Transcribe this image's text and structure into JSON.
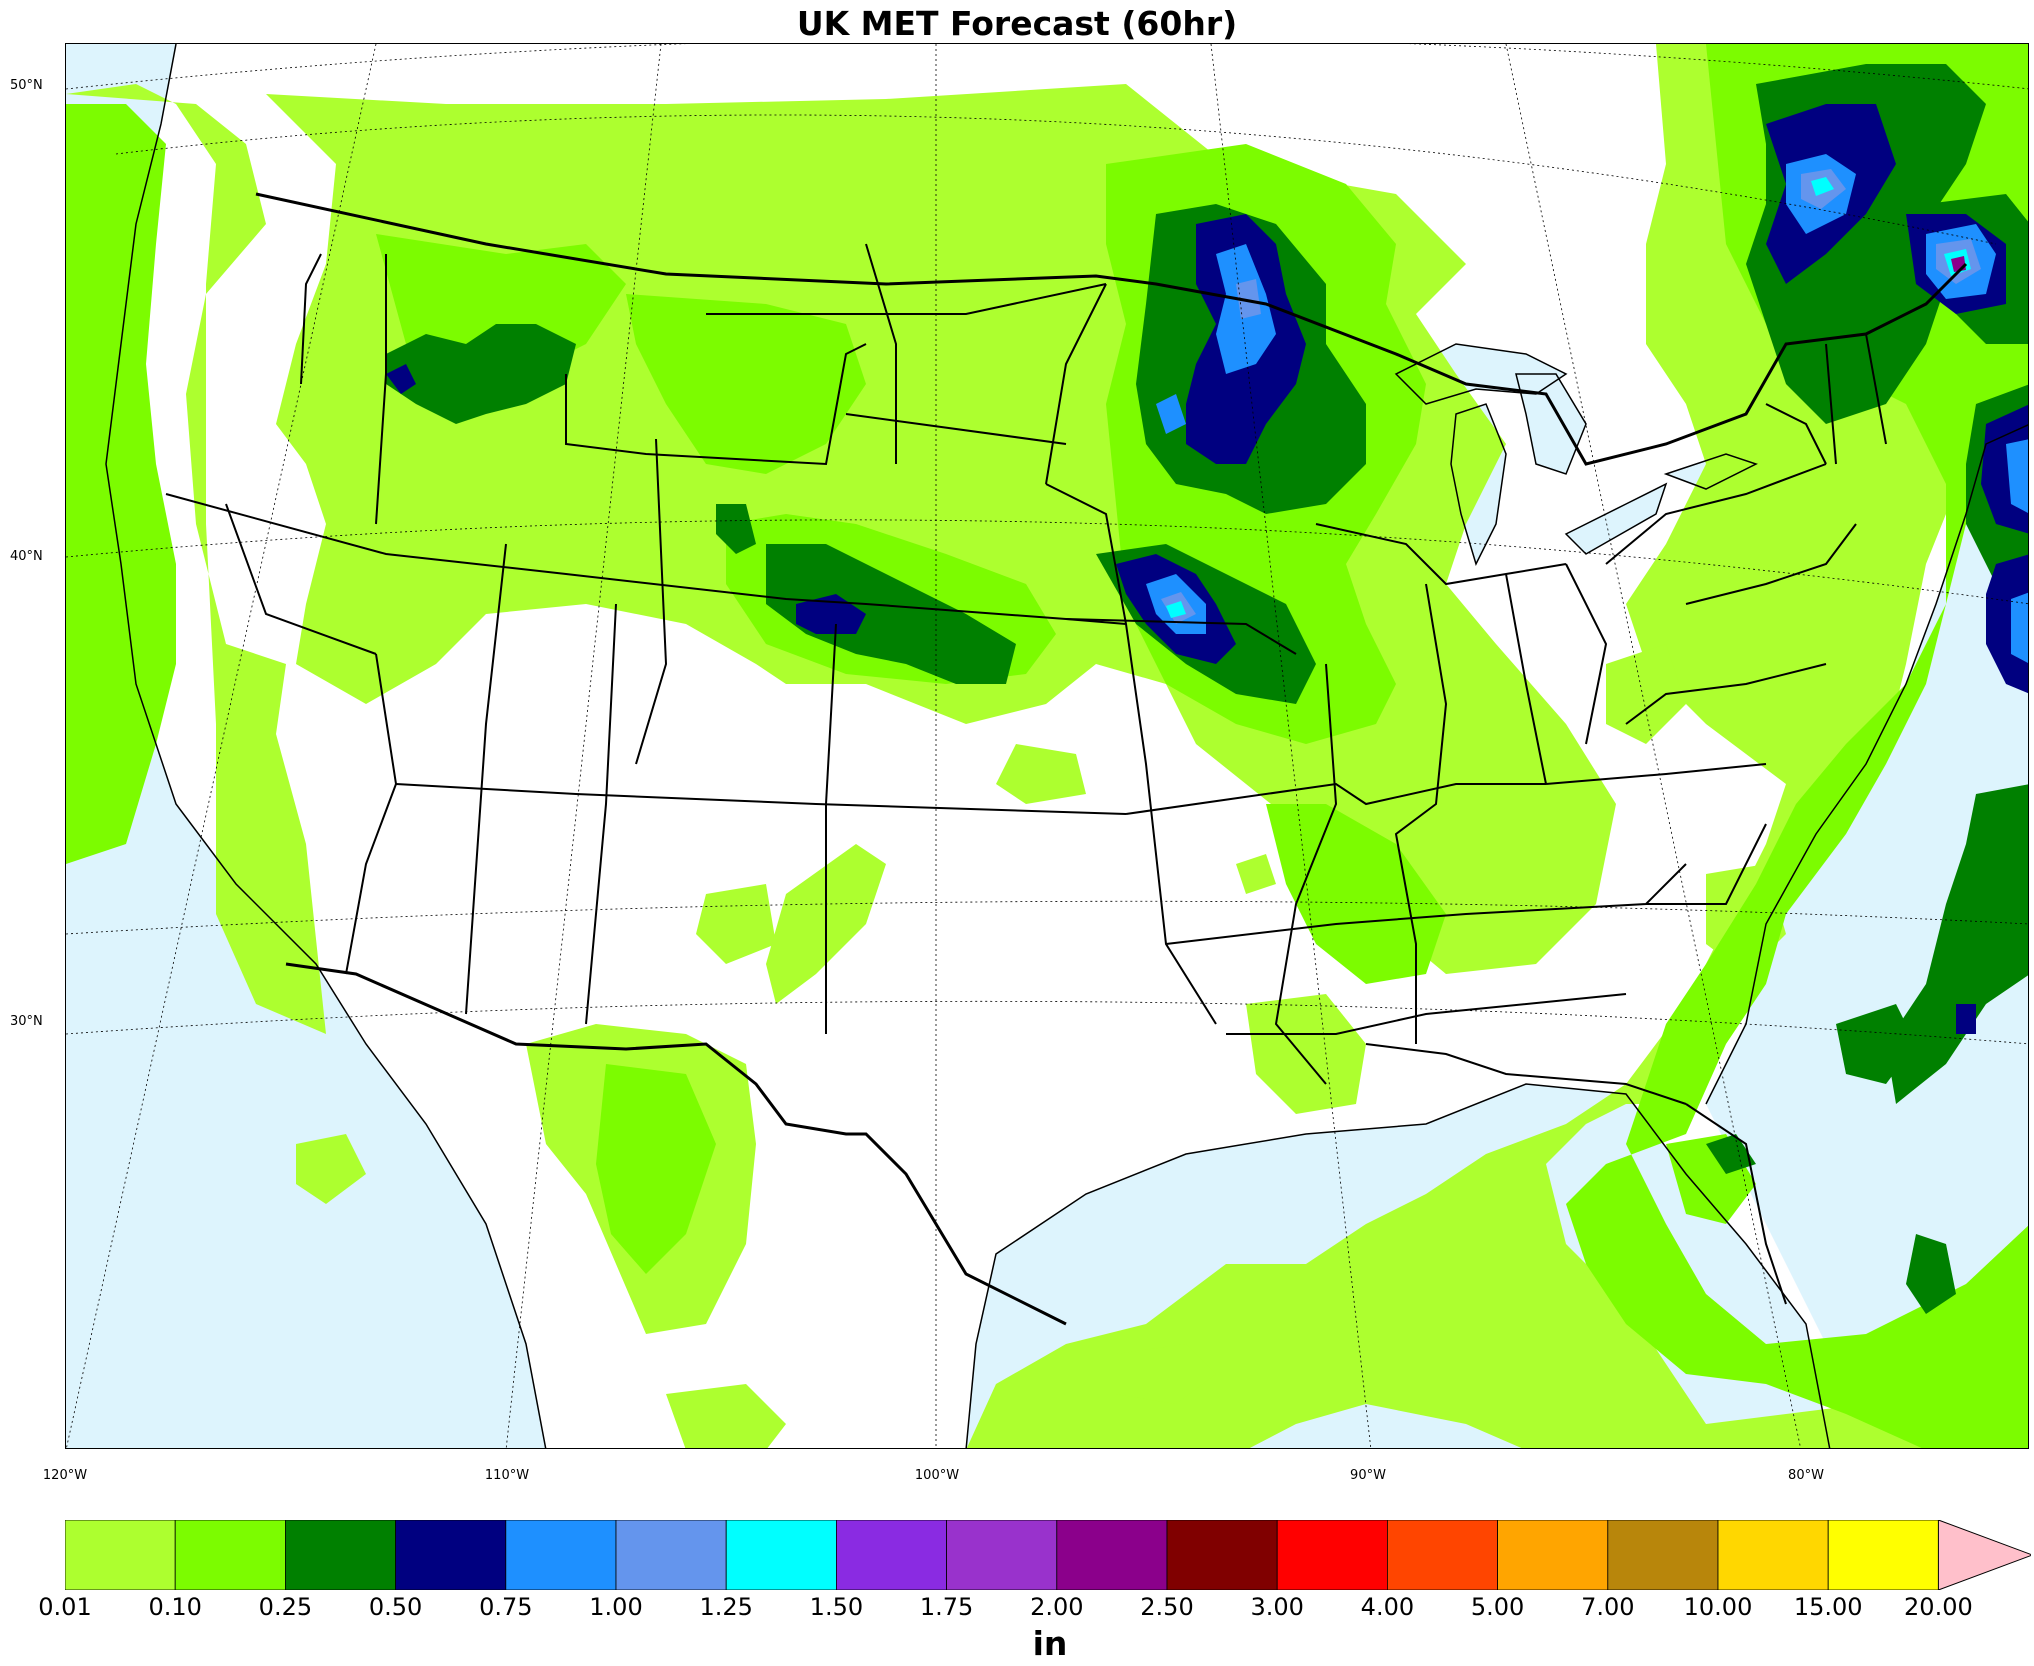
{
  "title": "UK MET Forecast (60hr)",
  "map": {
    "projection": "lambert-conformal",
    "region": "Continental United States",
    "ocean_color": "#ddf4fd",
    "land_color": "#ffffff",
    "lat_labels": [
      "50°N",
      "40°N",
      "30°N"
    ],
    "lon_labels": [
      "120°W",
      "110°W",
      "100°W",
      "90°W",
      "80°W"
    ],
    "precip_maxima": [
      {
        "region": "Minnesota / Wisconsin",
        "max_level": "1.25-1.50"
      },
      {
        "region": "Iowa / Missouri border",
        "max_level": "1.25-1.50"
      },
      {
        "region": "New England / Quebec",
        "max_level": "1.25-1.50"
      },
      {
        "region": "Gulf of Maine offshore",
        "max_level": "2.00-2.50"
      },
      {
        "region": "Western Atlantic offshore",
        "max_level": "0.75-1.00"
      },
      {
        "region": "Idaho / Montana",
        "max_level": "0.75-1.00"
      },
      {
        "region": "Nebraska / Colorado",
        "max_level": "0.50-0.75"
      }
    ]
  },
  "colorbar": {
    "units": "in",
    "ticks": [
      "0.01",
      "0.10",
      "0.25",
      "0.50",
      "0.75",
      "1.00",
      "1.25",
      "1.50",
      "1.75",
      "2.00",
      "2.50",
      "3.00",
      "4.00",
      "5.00",
      "7.00",
      "10.00",
      "15.00",
      "20.00"
    ],
    "colors": [
      "#adff2f",
      "#7cfc00",
      "#008000",
      "#000080",
      "#1e90ff",
      "#6495ed",
      "#00ffff",
      "#8a2be2",
      "#9932cc",
      "#8b008b",
      "#800000",
      "#ff0000",
      "#ff4500",
      "#ffa500",
      "#b8860b",
      "#ffd700",
      "#ffff00"
    ],
    "extend_color": "#ffc0cb"
  }
}
